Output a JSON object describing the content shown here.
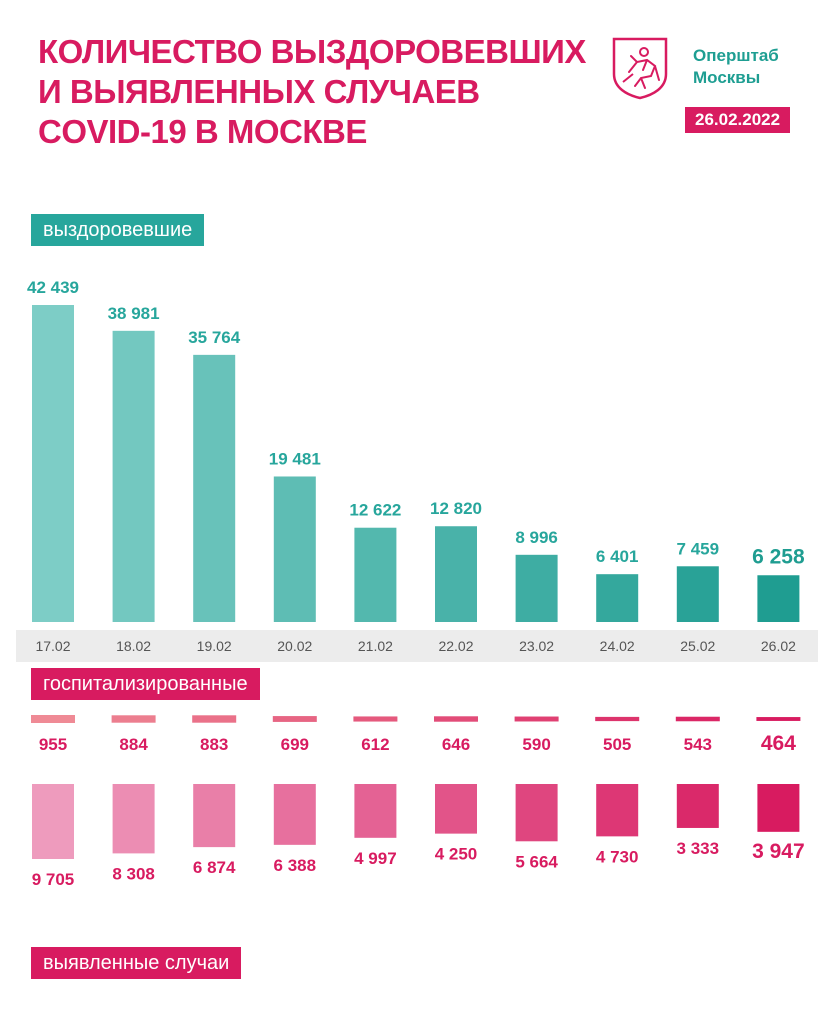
{
  "header": {
    "title_lines": [
      "КОЛИЧЕСТВО ВЫЗДОРОВЕВШИХ",
      "И ВЫЯВЛЕННЫХ СЛУЧАЕВ",
      "COVID-19 В МОСКВЕ"
    ],
    "org_lines": [
      "Оперштаб",
      "Москвы"
    ],
    "date": "26.02.2022",
    "logo_icon": "moscow-coat-of-arms-icon"
  },
  "labels": {
    "recovered": "выздоровевшие",
    "hospitalized": "госпитализированные",
    "detected": "выявленные случаи"
  },
  "colors": {
    "title": "#d81b60",
    "teal_light": "#7dcdc6",
    "teal_dark": "#1f9d91",
    "pink_light": "#ee9bbd",
    "pink_dark": "#d81b60",
    "hosp_light": "#ef8a95",
    "axis_strip": "#ececec"
  },
  "chart_data": [
    {
      "type": "bar",
      "name": "recovered",
      "categories": [
        "17.02",
        "18.02",
        "19.02",
        "20.02",
        "21.02",
        "22.02",
        "23.02",
        "24.02",
        "25.02",
        "26.02"
      ],
      "values": [
        42439,
        38981,
        35764,
        19481,
        12622,
        12820,
        8996,
        6401,
        7459,
        6258
      ],
      "value_labels": [
        "42 439",
        "38 981",
        "35 764",
        "19 481",
        "12 622",
        "12 820",
        "8 996",
        "6 401",
        "7 459",
        "6 258"
      ],
      "ylim": [
        0,
        42439
      ]
    },
    {
      "type": "bar",
      "name": "hospitalized",
      "categories": [
        "17.02",
        "18.02",
        "19.02",
        "20.02",
        "21.02",
        "22.02",
        "23.02",
        "24.02",
        "25.02",
        "26.02"
      ],
      "values": [
        955,
        884,
        883,
        699,
        612,
        646,
        590,
        505,
        543,
        464
      ],
      "value_labels": [
        "955",
        "884",
        "883",
        "699",
        "612",
        "646",
        "590",
        "505",
        "543",
        "464"
      ]
    },
    {
      "type": "bar",
      "name": "detected",
      "categories": [
        "17.02",
        "18.02",
        "19.02",
        "20.02",
        "21.02",
        "22.02",
        "23.02",
        "24.02",
        "25.02",
        "26.02"
      ],
      "values": [
        9705,
        8308,
        6874,
        6388,
        4997,
        4250,
        5664,
        4730,
        3333,
        3947
      ],
      "value_labels": [
        "9 705",
        "8 308",
        "6 874",
        "6 388",
        "4 997",
        "4 250",
        "5 664",
        "4 730",
        "3 333",
        "3 947"
      ]
    }
  ]
}
